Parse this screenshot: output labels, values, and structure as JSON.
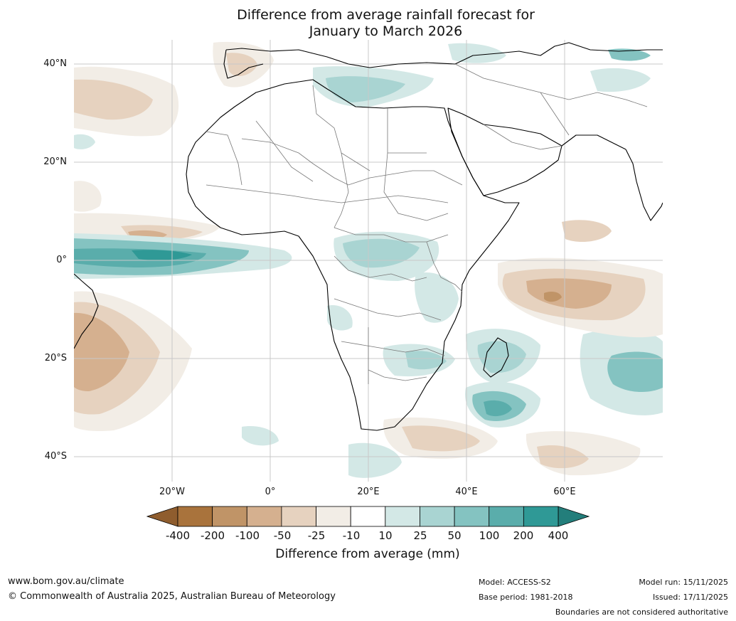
{
  "title": {
    "line1": "Difference from average rainfall forecast for",
    "line2": "January to March 2026"
  },
  "axes": {
    "lat_labels": [
      "40°N",
      "20°N",
      "0°",
      "20°S",
      "40°S"
    ],
    "lon_labels": [
      "20°W",
      "0°",
      "20°E",
      "40°E",
      "60°E"
    ]
  },
  "map_extent": {
    "lon_min": -40,
    "lon_max": 80,
    "lat_min": -45,
    "lat_max": 45
  },
  "region": "Africa, Middle East, Atlantic and western Indian Ocean",
  "legend": {
    "title": "Difference from average (mm)",
    "levels": [
      "-400",
      "-200",
      "-100",
      "-50",
      "-25",
      "-10",
      "10",
      "25",
      "50",
      "100",
      "200",
      "400"
    ],
    "colors": [
      "#a9733c",
      "#c09467",
      "#d5b08f",
      "#e6d2bf",
      "#f2ede6",
      "#ffffff",
      "#d3e8e6",
      "#a9d4d2",
      "#84c3c1",
      "#5aadab",
      "#2f9996"
    ],
    "under_color": "#8f5d2e",
    "over_color": "#237e7b"
  },
  "footer": {
    "website": "www.bom.gov.au/climate",
    "copyright": "© Commonwealth of Australia 2025, Australian Bureau of Meteorology",
    "model": "Model: ACCESS-S2",
    "base_period": "Base period: 1981-2018",
    "model_run": "Model run: 15/11/2025",
    "issued": "Issued: 17/11/2025",
    "disclaimer": "Boundaries are not considered authoritative"
  }
}
